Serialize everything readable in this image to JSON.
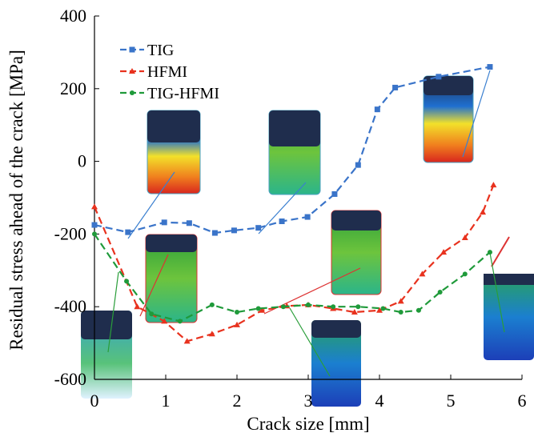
{
  "chart_data": {
    "type": "line",
    "x_label": "Crack size [mm]",
    "y_label": "Residual stress ahead of the crack [MPa]",
    "xlim": [
      0,
      6
    ],
    "xticks": [
      0,
      1,
      2,
      3,
      4,
      5,
      6
    ],
    "ylim": [
      -600,
      400
    ],
    "yticks": [
      -600,
      -400,
      -200,
      0,
      200,
      400
    ],
    "legend": "upper left",
    "series": [
      {
        "name": "TIG",
        "color": "#3a74c9",
        "marker": "square",
        "x": [
          0,
          0.47,
          0.98,
          1.33,
          1.69,
          1.96,
          2.3,
          2.63,
          2.99,
          3.37,
          3.7,
          3.97,
          4.22,
          4.83,
          5.55
        ],
        "values": [
          -175,
          -195,
          -168,
          -170,
          -197,
          -190,
          -183,
          -165,
          -153,
          -90,
          -10,
          143,
          203,
          233,
          260
        ]
      },
      {
        "name": "HFMI",
        "color": "#e8321e",
        "marker": "triangle",
        "x": [
          0,
          0.6,
          0.98,
          1.3,
          1.65,
          2.0,
          2.35,
          2.7,
          3.0,
          3.35,
          3.65,
          4.0,
          4.3,
          4.6,
          4.9,
          5.2,
          5.45,
          5.6
        ],
        "values": [
          -125,
          -400,
          -440,
          -495,
          -475,
          -450,
          -410,
          -398,
          -395,
          -405,
          -415,
          -410,
          -385,
          -310,
          -250,
          -210,
          -140,
          -65
        ]
      },
      {
        "name": "TIG-HFMI",
        "color": "#1f9a3a",
        "marker": "circle",
        "x": [
          0,
          0.45,
          0.8,
          1.2,
          1.65,
          2.0,
          2.3,
          2.65,
          3.0,
          3.35,
          3.7,
          4.05,
          4.3,
          4.55,
          4.85,
          5.2,
          5.55
        ],
        "values": [
          -200,
          -330,
          -420,
          -440,
          -395,
          -415,
          -405,
          -400,
          -395,
          -400,
          -400,
          -405,
          -415,
          -410,
          -360,
          -310,
          -250
        ]
      }
    ]
  }
}
